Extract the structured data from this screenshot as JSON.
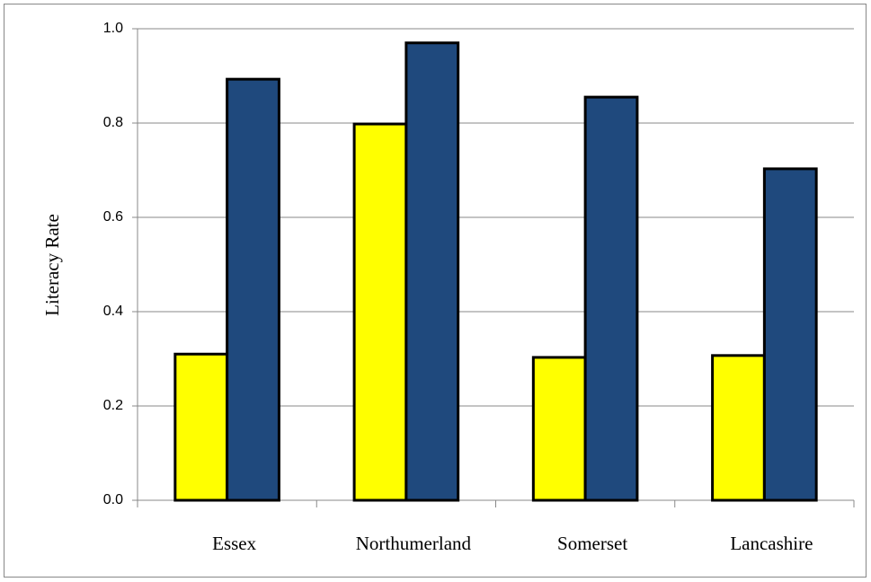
{
  "chart_data": {
    "type": "bar",
    "y_label": "Literacy Rate",
    "categories": [
      "Essex",
      "Northumerland",
      "Somerset",
      "Lancashire"
    ],
    "series": [
      {
        "color": "#ffff00",
        "values": [
          0.31,
          0.798,
          0.303,
          0.307
        ]
      },
      {
        "color": "#1f497d",
        "values": [
          0.893,
          0.97,
          0.855,
          0.703
        ]
      }
    ],
    "ylim": [
      0,
      1
    ],
    "yticks": [
      {
        "value": 0,
        "label": "0.0"
      },
      0.2,
      0.4,
      0.6,
      0.8,
      {
        "value": 1,
        "label": "1.0"
      }
    ],
    "grid": true
  }
}
